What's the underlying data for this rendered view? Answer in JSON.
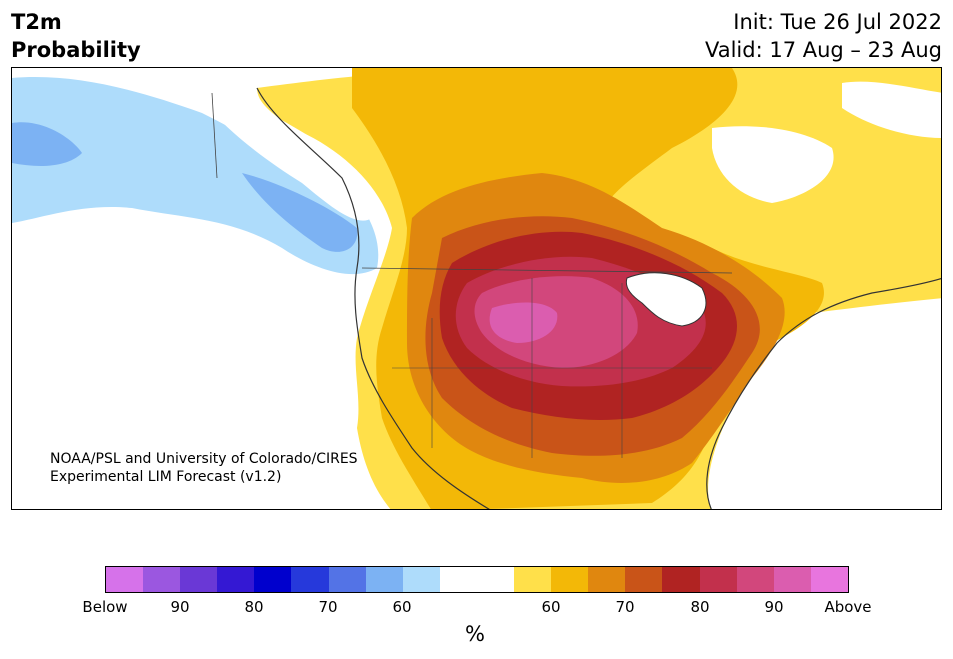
{
  "header": {
    "variable": "T2m",
    "product": "Probability",
    "init": "Init: Tue 26 Jul 2022",
    "valid": "Valid: 17 Aug – 23 Aug"
  },
  "map": {
    "credit_line1": "NOAA/PSL and University of Colorado/CIRES",
    "credit_line2": "Experimental LIM Forecast (v1.2)",
    "region": "North America"
  },
  "colorbar": {
    "unit": "%",
    "colors": [
      "#d672ea",
      "#9b57e0",
      "#6a38d6",
      "#3418d3",
      "#0000cd",
      "#2639db",
      "#5373e6",
      "#7cb2f3",
      "#aedcfb",
      "#ffffff",
      "#ffffff",
      "#ffe04a",
      "#f3b807",
      "#e0870f",
      "#c95418",
      "#b02322",
      "#c2304c",
      "#d2477c",
      "#db5daf",
      "#e875de"
    ],
    "ticks": [
      "Below",
      "90",
      "80",
      "70",
      "60",
      "60",
      "70",
      "80",
      "90",
      "Above"
    ]
  }
}
